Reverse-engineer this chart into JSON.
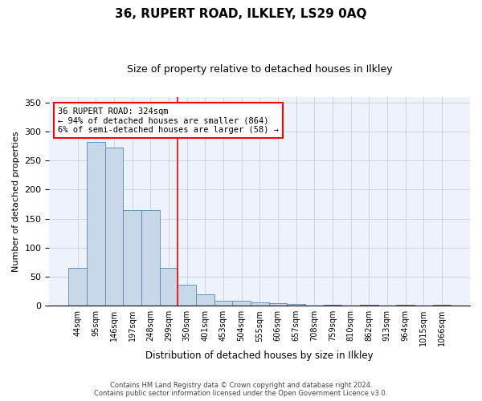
{
  "title": "36, RUPERT ROAD, ILKLEY, LS29 0AQ",
  "subtitle": "Size of property relative to detached houses in Ilkley",
  "xlabel": "Distribution of detached houses by size in Ilkley",
  "ylabel": "Number of detached properties",
  "footer_line1": "Contains HM Land Registry data © Crown copyright and database right 2024.",
  "footer_line2": "Contains public sector information licensed under the Open Government Licence v3.0.",
  "annotation_line1": "36 RUPERT ROAD: 324sqm",
  "annotation_line2": "← 94% of detached houses are smaller (864)",
  "annotation_line3": "6% of semi-detached houses are larger (58) →",
  "bar_color": "#c8d8e8",
  "bar_edge_color": "#5588aa",
  "vline_color": "red",
  "grid_color": "#c0c8d8",
  "background_color": "#eef2fa",
  "categories": [
    "44sqm",
    "95sqm",
    "146sqm",
    "197sqm",
    "248sqm",
    "299sqm",
    "350sqm",
    "401sqm",
    "453sqm",
    "504sqm",
    "555sqm",
    "606sqm",
    "657sqm",
    "708sqm",
    "759sqm",
    "810sqm",
    "862sqm",
    "913sqm",
    "964sqm",
    "1015sqm",
    "1066sqm"
  ],
  "values": [
    65,
    282,
    273,
    164,
    164,
    65,
    36,
    19,
    8,
    9,
    6,
    4,
    3,
    0,
    2,
    0,
    1,
    0,
    2,
    0,
    2
  ],
  "vline_position": 5.5,
  "ylim": [
    0,
    360
  ],
  "yticks": [
    0,
    50,
    100,
    150,
    200,
    250,
    300,
    350
  ]
}
